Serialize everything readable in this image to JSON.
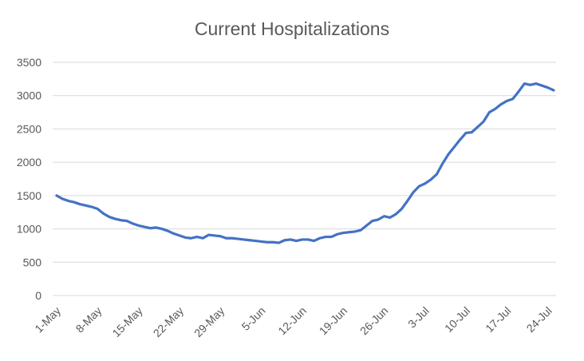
{
  "chart_data": {
    "type": "line",
    "title": "Current Hospitalizations",
    "categories": [
      "1-May",
      null,
      null,
      null,
      null,
      null,
      null,
      "8-May",
      null,
      null,
      null,
      null,
      null,
      null,
      "15-May",
      null,
      null,
      null,
      null,
      null,
      null,
      "22-May",
      null,
      null,
      null,
      null,
      null,
      null,
      "29-May",
      null,
      null,
      null,
      null,
      null,
      null,
      "5-Jun",
      null,
      null,
      null,
      null,
      null,
      null,
      "12-Jun",
      null,
      null,
      null,
      null,
      null,
      null,
      "19-Jun",
      null,
      null,
      null,
      null,
      null,
      null,
      "26-Jun",
      null,
      null,
      null,
      null,
      null,
      null,
      "3-Jul",
      null,
      null,
      null,
      null,
      null,
      null,
      "10-Jul",
      null,
      null,
      null,
      null,
      null,
      null,
      "17-Jul",
      null,
      null,
      null,
      null,
      null,
      null,
      "24-Jul",
      null
    ],
    "series": [
      {
        "name": "Current Hospitalizations",
        "color": "#4472c4",
        "values": [
          1500,
          1450,
          1420,
          1400,
          1370,
          1350,
          1330,
          1300,
          1230,
          1180,
          1150,
          1130,
          1120,
          1080,
          1050,
          1030,
          1010,
          1020,
          1000,
          970,
          930,
          900,
          870,
          860,
          880,
          860,
          910,
          900,
          890,
          860,
          860,
          850,
          840,
          830,
          820,
          810,
          800,
          800,
          790,
          830,
          840,
          820,
          840,
          840,
          820,
          860,
          880,
          880,
          920,
          940,
          950,
          960,
          980,
          1050,
          1120,
          1140,
          1190,
          1170,
          1220,
          1300,
          1420,
          1550,
          1640,
          1680,
          1740,
          1820,
          1980,
          2120,
          2230,
          2340,
          2440,
          2450,
          2530,
          2610,
          2750,
          2800,
          2870,
          2920,
          2950,
          3060,
          3180,
          3160,
          3180,
          3150,
          3120,
          3080
        ]
      }
    ],
    "ylim": [
      0,
      3500
    ],
    "yticks": [
      0,
      500,
      1000,
      1500,
      2000,
      2500,
      3000,
      3500
    ],
    "grid": true
  }
}
